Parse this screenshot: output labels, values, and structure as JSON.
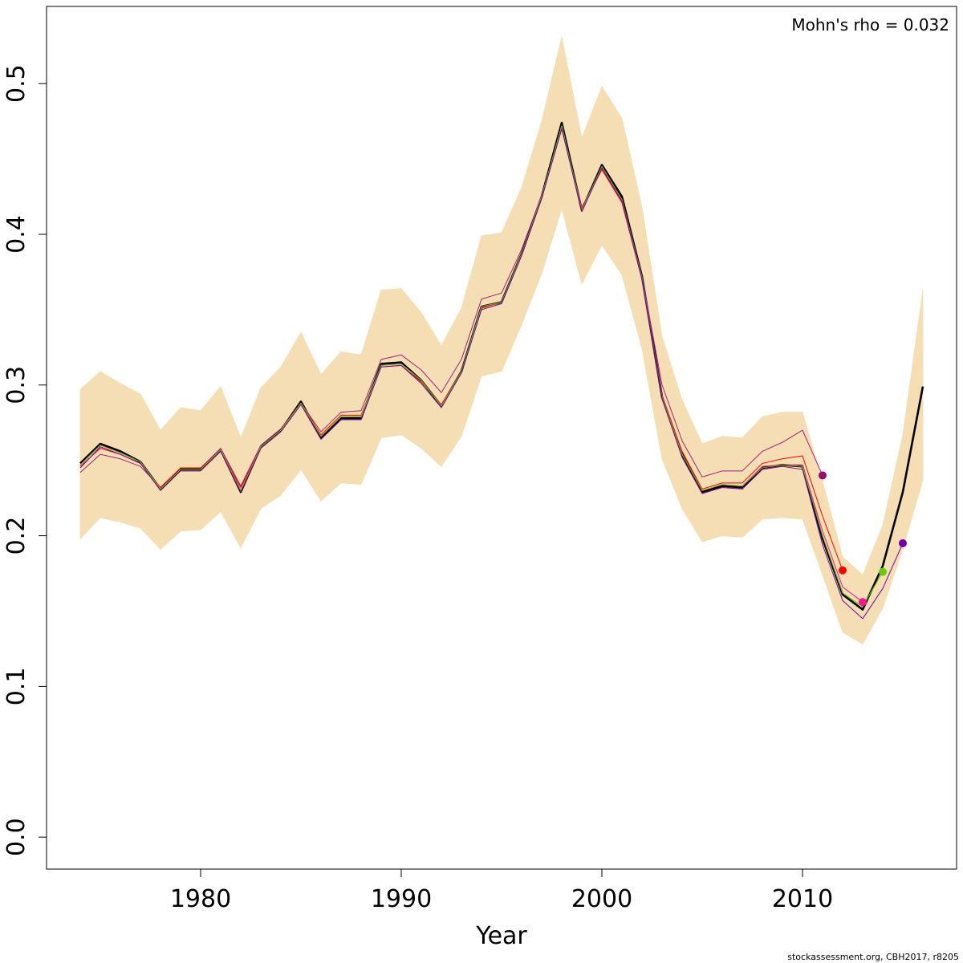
{
  "chart_data": {
    "type": "line",
    "x_label": "Year",
    "annotation": "Mohn's rho = 0.032",
    "footer": "stockassessment.org, CBH2017, r8205",
    "x": [
      1974,
      1975,
      1976,
      1977,
      1978,
      1979,
      1980,
      1981,
      1982,
      1983,
      1984,
      1985,
      1986,
      1987,
      1988,
      1989,
      1990,
      1991,
      1992,
      1993,
      1994,
      1995,
      1996,
      1997,
      1998,
      1999,
      2000,
      2001,
      2002,
      2003,
      2004,
      2005,
      2006,
      2007,
      2008,
      2009,
      2010,
      2011,
      2012,
      2013,
      2014,
      2015,
      2016
    ],
    "xlim": [
      1972.32,
      2017.68
    ],
    "ylim": [
      -0.0212,
      0.5512
    ],
    "xticks": [
      1980,
      1990,
      2000,
      2010
    ],
    "yticks": [
      {
        "value": 0,
        "label": "0.0"
      },
      0.1,
      0.2,
      0.3,
      0.4,
      0.5
    ],
    "band_color": "#f5deb3",
    "band_upper": [
      0.297,
      0.309,
      0.301,
      0.294,
      0.27,
      0.285,
      0.283,
      0.299,
      0.265,
      0.298,
      0.312,
      0.335,
      0.307,
      0.322,
      0.32,
      0.363,
      0.364,
      0.348,
      0.326,
      0.351,
      0.399,
      0.401,
      0.431,
      0.475,
      0.531,
      0.464,
      0.498,
      0.477,
      0.418,
      0.332,
      0.29,
      0.261,
      0.266,
      0.265,
      0.279,
      0.282,
      0.282,
      0.236,
      0.186,
      0.174,
      0.207,
      0.267,
      0.363
    ],
    "band_lower": [
      0.198,
      0.212,
      0.209,
      0.205,
      0.191,
      0.203,
      0.204,
      0.216,
      0.192,
      0.218,
      0.227,
      0.244,
      0.223,
      0.235,
      0.234,
      0.265,
      0.267,
      0.258,
      0.246,
      0.266,
      0.306,
      0.309,
      0.34,
      0.374,
      0.417,
      0.367,
      0.393,
      0.373,
      0.324,
      0.251,
      0.218,
      0.196,
      0.2,
      0.199,
      0.211,
      0.212,
      0.211,
      0.174,
      0.136,
      0.128,
      0.152,
      0.191,
      0.237
    ],
    "series": [
      {
        "color": "#000000",
        "values": [
          0.248,
          0.261,
          0.256,
          0.249,
          0.231,
          0.244,
          0.244,
          0.257,
          0.229,
          0.259,
          0.27,
          0.289,
          0.265,
          0.278,
          0.278,
          0.314,
          0.315,
          0.303,
          0.286,
          0.309,
          0.352,
          0.355,
          0.387,
          0.425,
          0.474,
          0.416,
          0.446,
          0.425,
          0.372,
          0.292,
          0.254,
          0.229,
          0.233,
          0.232,
          0.245,
          0.247,
          0.246,
          0.198,
          0.161,
          0.151,
          0.18,
          0.229,
          0.299
        ]
      },
      {
        "color": "#a0207a",
        "dot_color": "#9b0a6e",
        "values": [
          0.242,
          0.254,
          0.251,
          0.246,
          0.232,
          0.245,
          0.245,
          0.258,
          0.233,
          0.26,
          0.271,
          0.288,
          0.269,
          0.282,
          0.283,
          0.317,
          0.32,
          0.31,
          0.295,
          0.317,
          0.357,
          0.361,
          0.39,
          0.426,
          0.47,
          0.418,
          0.443,
          0.423,
          0.372,
          0.3,
          0.263,
          0.239,
          0.243,
          0.243,
          0.256,
          0.262,
          0.27,
          0.24,
          null,
          null,
          null,
          null,
          null
        ]
      },
      {
        "color": "#ff0000",
        "dot_color": "#ff0000",
        "values": [
          0.246,
          0.258,
          0.254,
          0.248,
          0.232,
          0.245,
          0.245,
          0.257,
          0.232,
          0.259,
          0.27,
          0.288,
          0.267,
          0.28,
          0.28,
          0.312,
          0.313,
          0.302,
          0.287,
          0.309,
          0.351,
          0.355,
          0.386,
          0.424,
          0.47,
          0.417,
          0.443,
          0.421,
          0.37,
          0.293,
          0.256,
          0.231,
          0.235,
          0.235,
          0.248,
          0.251,
          0.253,
          0.213,
          0.177,
          null,
          null,
          null,
          null
        ]
      },
      {
        "color": "#ff1493",
        "dot_color": "#ff1493",
        "values": [
          0.247,
          0.26,
          0.255,
          0.249,
          0.231,
          0.244,
          0.244,
          0.257,
          0.23,
          0.259,
          0.27,
          0.288,
          0.266,
          0.279,
          0.279,
          0.313,
          0.314,
          0.303,
          0.286,
          0.309,
          0.352,
          0.355,
          0.387,
          0.425,
          0.472,
          0.416,
          0.445,
          0.423,
          0.371,
          0.292,
          0.254,
          0.23,
          0.234,
          0.233,
          0.246,
          0.247,
          0.247,
          0.203,
          0.166,
          0.156,
          null,
          null,
          null
        ]
      },
      {
        "color": "#66cc00",
        "dot_color": "#66cc00",
        "values": [
          0.247,
          0.26,
          0.255,
          0.249,
          0.231,
          0.244,
          0.244,
          0.257,
          0.23,
          0.259,
          0.27,
          0.288,
          0.266,
          0.279,
          0.279,
          0.313,
          0.314,
          0.303,
          0.286,
          0.309,
          0.352,
          0.355,
          0.387,
          0.425,
          0.472,
          0.416,
          0.445,
          0.423,
          0.371,
          0.292,
          0.254,
          0.23,
          0.234,
          0.233,
          0.245,
          0.247,
          0.246,
          0.2,
          0.162,
          0.153,
          0.176,
          null,
          null
        ]
      },
      {
        "color": "#7000a8",
        "dot_color": "#7000a8",
        "values": [
          0.245,
          0.259,
          0.254,
          0.248,
          0.23,
          0.243,
          0.243,
          0.256,
          0.229,
          0.258,
          0.269,
          0.287,
          0.264,
          0.277,
          0.277,
          0.312,
          0.313,
          0.301,
          0.285,
          0.308,
          0.35,
          0.354,
          0.386,
          0.424,
          0.47,
          0.415,
          0.444,
          0.422,
          0.37,
          0.291,
          0.252,
          0.228,
          0.232,
          0.231,
          0.244,
          0.246,
          0.244,
          0.194,
          0.157,
          0.145,
          0.165,
          0.195,
          null
        ]
      }
    ]
  }
}
